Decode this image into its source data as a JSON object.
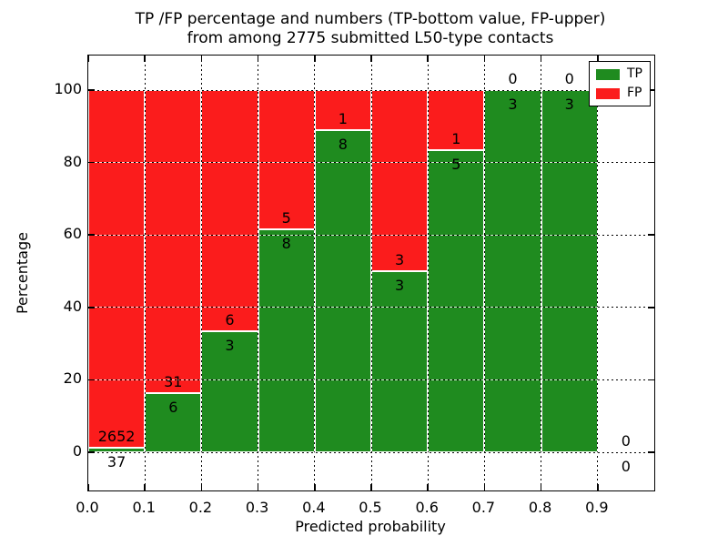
{
  "chart_data": {
    "type": "bar",
    "stacked": true,
    "title_line1": "TP /FP percentage and numbers (TP-bottom value, FP-upper)",
    "title_line2": "from among 2775 submitted L50-type contacts",
    "xlabel": "Predicted probability",
    "ylabel": "Percentage",
    "x_tick_labels": [
      "0.0",
      "0.1",
      "0.2",
      "0.3",
      "0.4",
      "0.5",
      "0.6",
      "0.7",
      "0.8",
      "0.9"
    ],
    "y_tick_labels": [
      "0",
      "20",
      "40",
      "60",
      "80",
      "100"
    ],
    "y_tick_values": [
      0,
      20,
      40,
      60,
      80,
      100
    ],
    "xlim": [
      0.0,
      1.0
    ],
    "ylim": [
      -11,
      110
    ],
    "bin_width": 0.1,
    "grid_style": "dotted",
    "colors": {
      "tp": "#1f8b1f",
      "fp": "#fb1c1c"
    },
    "legend": {
      "position": "upper-right",
      "entries": [
        {
          "name": "TP",
          "label": "TP",
          "color": "#1f8b1f"
        },
        {
          "name": "FP",
          "label": "FP",
          "color": "#fb1c1c"
        }
      ]
    },
    "bins": [
      {
        "x_start": 0.0,
        "x_end": 0.1,
        "tp_count": 37,
        "fp_count": 2652,
        "tp_pct": 1.38
      },
      {
        "x_start": 0.1,
        "x_end": 0.2,
        "tp_count": 6,
        "fp_count": 31,
        "tp_pct": 16.22
      },
      {
        "x_start": 0.2,
        "x_end": 0.3,
        "tp_count": 3,
        "fp_count": 6,
        "tp_pct": 33.33
      },
      {
        "x_start": 0.3,
        "x_end": 0.4,
        "tp_count": 8,
        "fp_count": 5,
        "tp_pct": 61.54
      },
      {
        "x_start": 0.4,
        "x_end": 0.5,
        "tp_count": 8,
        "fp_count": 1,
        "tp_pct": 88.89
      },
      {
        "x_start": 0.5,
        "x_end": 0.6,
        "tp_count": 3,
        "fp_count": 3,
        "tp_pct": 50.0
      },
      {
        "x_start": 0.6,
        "x_end": 0.7,
        "tp_count": 5,
        "fp_count": 1,
        "tp_pct": 83.33
      },
      {
        "x_start": 0.7,
        "x_end": 0.8,
        "tp_count": 3,
        "fp_count": 0,
        "tp_pct": 100.0
      },
      {
        "x_start": 0.8,
        "x_end": 0.9,
        "tp_count": 3,
        "fp_count": 0,
        "tp_pct": 100.0
      },
      {
        "x_start": 0.9,
        "x_end": 1.0,
        "tp_count": 0,
        "fp_count": 0,
        "tp_pct": 0.0
      }
    ]
  }
}
